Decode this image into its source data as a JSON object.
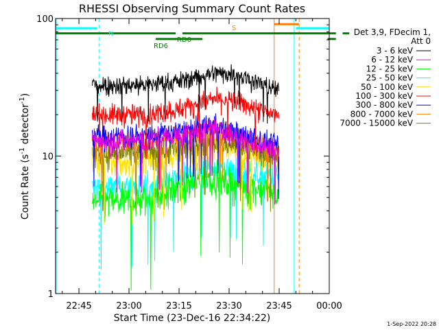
{
  "chart_data": {
    "type": "line",
    "title": "RHESSI Observing Summary Count Rates",
    "xlabel": "Start Time (23-Dec-16 22:34:22)",
    "ylabel_main": "Count Rate (s",
    "ylabel_sup1": "-1",
    "ylabel_mid": " detector",
    "ylabel_sup2": "-1",
    "ylabel_end": ")",
    "yscale": "log",
    "ylim": [
      1,
      100
    ],
    "xlim_minutes": [
      -7,
      75
    ],
    "x_ticks": [
      {
        "minute": 0,
        "label": "22:45"
      },
      {
        "minute": 15,
        "label": "23:00"
      },
      {
        "minute": 30,
        "label": "23:15"
      },
      {
        "minute": 45,
        "label": "23:30"
      },
      {
        "minute": 60,
        "label": "23:45"
      },
      {
        "minute": 75,
        "label": "00:00"
      }
    ],
    "y_ticks": [
      {
        "value": 1,
        "label": "1"
      },
      {
        "value": 10,
        "label": "10"
      },
      {
        "value": 100,
        "label": "100"
      }
    ],
    "legend_header": [
      "Det 3,9, FDecim 1,",
      "Att 0"
    ],
    "series": [
      {
        "name": "3 - 6 keV",
        "color": "#000000",
        "start": 4,
        "end": 60,
        "levels": [
          [
            4,
            33
          ],
          [
            20,
            33
          ],
          [
            30,
            35
          ],
          [
            40,
            40
          ],
          [
            47,
            40
          ],
          [
            55,
            33
          ],
          [
            60,
            30
          ]
        ]
      },
      {
        "name": "6 - 12 keV",
        "color": "#e000e0",
        "start": 4,
        "end": 60,
        "levels": [
          [
            4,
            13
          ],
          [
            20,
            13
          ],
          [
            30,
            14
          ],
          [
            40,
            16
          ],
          [
            50,
            13
          ],
          [
            60,
            11
          ]
        ]
      },
      {
        "name": "12 - 25 keV",
        "color": "#00ff00",
        "start": 4,
        "end": 60,
        "levels": [
          [
            4,
            4.6
          ],
          [
            20,
            4.8
          ],
          [
            30,
            5.8
          ],
          [
            40,
            7
          ],
          [
            50,
            6
          ],
          [
            60,
            5.5
          ]
        ]
      },
      {
        "name": "25 - 50 keV",
        "color": "#00ffff",
        "start": 4,
        "end": 60,
        "levels": [
          [
            4,
            5.8
          ],
          [
            20,
            6
          ],
          [
            30,
            7
          ],
          [
            40,
            8.3
          ],
          [
            50,
            7.5
          ],
          [
            60,
            7
          ]
        ]
      },
      {
        "name": "50 - 100 keV",
        "color": "#ffe000",
        "start": 4,
        "end": 60,
        "levels": [
          [
            4,
            9
          ],
          [
            20,
            9
          ],
          [
            30,
            10.5
          ],
          [
            40,
            12
          ],
          [
            50,
            10.5
          ],
          [
            60,
            9.5
          ]
        ]
      },
      {
        "name": "100 - 300 keV",
        "color": "#ff0000",
        "start": 4,
        "end": 60,
        "levels": [
          [
            4,
            20
          ],
          [
            20,
            20
          ],
          [
            30,
            22
          ],
          [
            40,
            26
          ],
          [
            48,
            25
          ],
          [
            55,
            21
          ],
          [
            60,
            20
          ]
        ]
      },
      {
        "name": "300 - 800 keV",
        "color": "#0000ff",
        "start": 4,
        "end": 60,
        "levels": [
          [
            4,
            14
          ],
          [
            20,
            14
          ],
          [
            30,
            15
          ],
          [
            40,
            17
          ],
          [
            50,
            14
          ],
          [
            60,
            12
          ]
        ]
      },
      {
        "name": "800 - 7000 keV",
        "color": "#ff8000",
        "start": 4,
        "end": 60,
        "levels": [
          [
            4,
            12.5
          ],
          [
            20,
            12.5
          ],
          [
            30,
            13.5
          ],
          [
            40,
            16
          ],
          [
            50,
            13
          ],
          [
            60,
            11
          ]
        ]
      },
      {
        "name": "7000 - 15000 keV",
        "color": "#808000",
        "start": 4,
        "end": 60,
        "levels": [
          [
            4,
            10.5
          ],
          [
            20,
            10.5
          ],
          [
            30,
            11.5
          ],
          [
            40,
            13
          ],
          [
            50,
            11.5
          ],
          [
            60,
            10
          ]
        ]
      }
    ],
    "series_draw_order": [
      3,
      2,
      4,
      8,
      7,
      6,
      1,
      5,
      0
    ],
    "flag_bars": [
      {
        "label": "N",
        "color": "#00ffff",
        "value": 85,
        "segments": [
          [
            -7,
            5.5
          ],
          [
            65,
            75
          ]
        ]
      },
      {
        "label": "RD0",
        "color": "#008000",
        "value": 78,
        "segments": [
          [
            -7,
            29
          ],
          [
            31,
            77
          ],
          [
            79,
            81
          ]
        ]
      },
      {
        "label": "RD6",
        "color": "#008000",
        "value": 71,
        "segments": [
          [
            23,
            37
          ],
          [
            74.5,
            77
          ]
        ]
      },
      {
        "label": "S",
        "color": "#ff8000",
        "value": 91,
        "segments": [
          [
            58.5,
            66
          ]
        ]
      }
    ],
    "vlines": [
      {
        "minute": -6.8,
        "color": "#00ffff",
        "style": "solid"
      },
      {
        "minute": 6,
        "color": "#00ffff",
        "style": "dashed"
      },
      {
        "minute": 58.5,
        "color": "#ff8000",
        "style": "solid"
      },
      {
        "minute": 64.5,
        "color": "#00ffff",
        "style": "solid"
      },
      {
        "minute": 66,
        "color": "#ff8000",
        "style": "dashed"
      },
      {
        "minute": 77,
        "color": "#00ffff",
        "style": "dashed"
      }
    ]
  },
  "footer_date": "1-Sep-2022 20:28"
}
